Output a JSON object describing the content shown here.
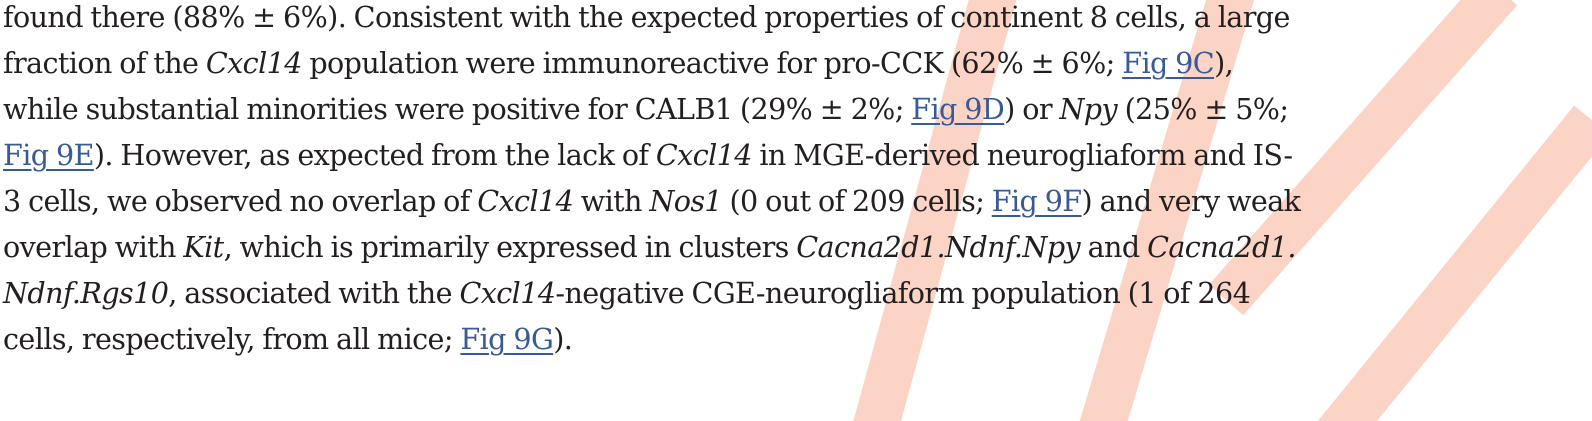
{
  "watermark_color": "#fcd4c6",
  "link_color": "#3a5a96",
  "text_color": "#231f20",
  "lines": [
    [
      {
        "t": "found there (88% ± 6%). Consistent with the expected properties of continent 8 cells, a large"
      }
    ],
    [
      {
        "t": "fraction of the "
      },
      {
        "t": "Cxcl14",
        "i": true
      },
      {
        "t": " population were immunoreactive for pro-CCK (62% ± 6%; "
      },
      {
        "t": "Fig 9C",
        "link": true
      },
      {
        "t": "),"
      }
    ],
    [
      {
        "t": "while substantial minorities were positive for CALB1 (29% ± 2%; "
      },
      {
        "t": "Fig 9D",
        "link": true
      },
      {
        "t": ") or "
      },
      {
        "t": "Npy",
        "i": true
      },
      {
        "t": " (25% ± 5%;"
      }
    ],
    [
      {
        "t": "Fig 9E",
        "link": true
      },
      {
        "t": "). However, as expected from the lack of "
      },
      {
        "t": "Cxcl14",
        "i": true
      },
      {
        "t": " in MGE-derived neurogliaform and IS-"
      }
    ],
    [
      {
        "t": "3 cells, we observed no overlap of "
      },
      {
        "t": "Cxcl14",
        "i": true
      },
      {
        "t": " with "
      },
      {
        "t": "Nos1",
        "i": true
      },
      {
        "t": " (0 out of 209 cells; "
      },
      {
        "t": "Fig 9F",
        "link": true
      },
      {
        "t": ") and very weak"
      }
    ],
    [
      {
        "t": "overlap with "
      },
      {
        "t": "Kit",
        "i": true
      },
      {
        "t": ", which is primarily expressed in clusters "
      },
      {
        "t": "Cacna2d1.Ndnf.Npy",
        "i": true
      },
      {
        "t": " and "
      },
      {
        "t": "Cacna2d1.",
        "i": true
      }
    ],
    [
      {
        "t": "Ndnf.Rgs10",
        "i": true
      },
      {
        "t": ", associated with the "
      },
      {
        "t": "Cxcl14",
        "i": true
      },
      {
        "t": "-negative CGE-neurogliaform population (1 of 264"
      }
    ],
    [
      {
        "t": "cells, respectively, from all mice; "
      },
      {
        "t": "Fig 9G",
        "link": true
      },
      {
        "t": ")."
      }
    ]
  ]
}
